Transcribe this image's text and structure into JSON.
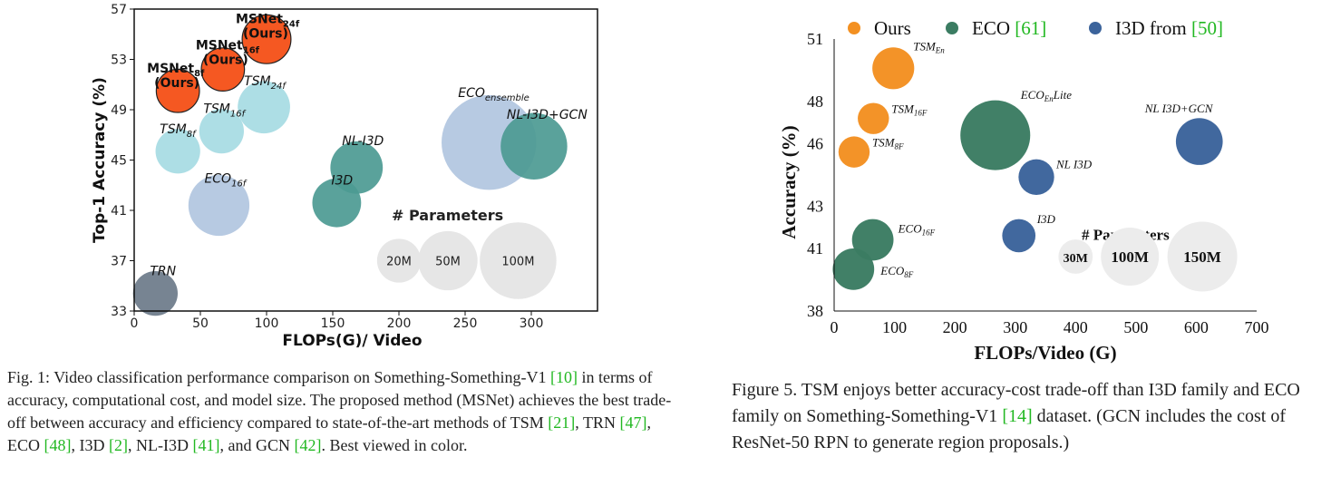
{
  "chart_data": [
    {
      "type": "scatter",
      "style": "bubble",
      "xlabel": "FLOPs(G)/ Video",
      "ylabel": "Top-1 Accuracy (%)",
      "xlim": [
        0,
        350
      ],
      "ylim": [
        33,
        57
      ],
      "xticks": [
        "0",
        "50",
        "100",
        "150",
        "200",
        "250",
        "300"
      ],
      "yticks": [
        "33",
        "37",
        "41",
        "45",
        "49",
        "53",
        "57"
      ],
      "points": [
        {
          "label": "MSNet",
          "sub": "24f",
          "label2": "(Ours)",
          "x": 100,
          "y": 54.6,
          "params": 24,
          "color": "#f44a0f",
          "label_dx": -34,
          "label_dy": -18
        },
        {
          "label": "MSNet",
          "sub": "16f",
          "label2": "(Ours)",
          "x": 67,
          "y": 52.2,
          "params": 16,
          "color": "#f44a0f",
          "label_dx": -30,
          "label_dy": -22
        },
        {
          "label": "MSNet",
          "sub": "8f",
          "label2": "(Ours)",
          "x": 33,
          "y": 50.5,
          "params": 16,
          "color": "#f44a0f",
          "label_dx": -34,
          "label_dy": -20
        },
        {
          "label": "TSM",
          "sub": "24f",
          "x": 98,
          "y": 49.2,
          "params": 30,
          "color": "#a6dbe3",
          "label_dx": -22,
          "label_dy": -24
        },
        {
          "label": "TSM",
          "sub": "16f",
          "x": 66,
          "y": 47.3,
          "params": 18,
          "color": "#a6dbe3",
          "label_dx": -20,
          "label_dy": -20
        },
        {
          "label": "TSM",
          "sub": "8f",
          "x": 33,
          "y": 45.7,
          "params": 18,
          "color": "#a6dbe3",
          "label_dx": -20,
          "label_dy": -20
        },
        {
          "label": "ECO",
          "sub": "ensemble",
          "x": 268,
          "y": 46.4,
          "params": 150,
          "color": "#b1c5e0",
          "label_dx": -34,
          "label_dy": -50
        },
        {
          "label": "NL-I3D+GCN",
          "sub": "",
          "x": 302,
          "y": 46.1,
          "params": 60,
          "color": "#4c9a93",
          "label_dx": -30,
          "label_dy": -30
        },
        {
          "label": "NL-I3D",
          "sub": "",
          "x": 168,
          "y": 44.4,
          "params": 30,
          "color": "#4c9a93",
          "label_dx": -16,
          "label_dy": -25
        },
        {
          "label": "I3D",
          "sub": "",
          "x": 153,
          "y": 41.6,
          "params": 24,
          "color": "#4c9a93",
          "label_dx": -6,
          "label_dy": -20
        },
        {
          "label": "ECO",
          "sub": "16f",
          "x": 64,
          "y": 41.4,
          "params": 47,
          "color": "#b1c5e0",
          "label_dx": -16,
          "label_dy": -25
        },
        {
          "label": "TRN",
          "sub": "",
          "x": 16,
          "y": 34.4,
          "params": 18,
          "color": "#6b7a89",
          "label_dx": -6,
          "label_dy": -20
        }
      ],
      "legend": {
        "title": "# Parameters",
        "entries": [
          {
            "label": "20M",
            "params": 20,
            "x": 200,
            "y": 37
          },
          {
            "label": "50M",
            "params": 50,
            "x": 237,
            "y": 37
          },
          {
            "label": "100M",
            "params": 100,
            "x": 290,
            "y": 37
          }
        ]
      }
    },
    {
      "type": "scatter",
      "style": "bubble",
      "xlabel": "FLOPs/Video (G)",
      "ylabel": "Accuracy (%)",
      "xlim": [
        0,
        700
      ],
      "ylim": [
        38,
        51
      ],
      "xticks": [
        "0",
        "100",
        "200",
        "300",
        "400",
        "500",
        "600",
        "700"
      ],
      "yticks": [
        "38",
        "41",
        "43",
        "46",
        "48",
        "51"
      ],
      "series": [
        {
          "name": "Ours",
          "color": "#f39021"
        },
        {
          "name": "ECO",
          "ref": "[61]",
          "color": "#3b7c62"
        },
        {
          "name": "I3D from",
          "ref": "[50]",
          "color": "#3b639b"
        }
      ],
      "points": [
        {
          "label": "TSM",
          "sub": "En",
          "x": 98,
          "y": 49.6,
          "params": 48,
          "color": "#f39021",
          "label_dx": 22,
          "label_dy": -20
        },
        {
          "label": "TSM",
          "sub": "16F",
          "x": 65,
          "y": 47.2,
          "params": 24,
          "color": "#f39021",
          "label_dx": 20,
          "label_dy": -6
        },
        {
          "label": "TSM",
          "sub": "8F",
          "x": 33,
          "y": 45.6,
          "params": 24,
          "color": "#f39021",
          "label_dx": 20,
          "label_dy": -6
        },
        {
          "label": "ECO",
          "sub": "En",
          "label_suffix": "Lite",
          "x": 267,
          "y": 46.4,
          "params": 150,
          "color": "#3b7c62",
          "label_dx": 28,
          "label_dy": -40
        },
        {
          "label": "NL I3D",
          "sub": "",
          "x": 335,
          "y": 44.4,
          "params": 33,
          "color": "#3b639b",
          "label_dx": 22,
          "label_dy": -10
        },
        {
          "label": "NL I3D+GCN",
          "sub": "",
          "x": 605,
          "y": 46.1,
          "params": 62,
          "color": "#3b639b",
          "label_dx": -60,
          "label_dy": -32
        },
        {
          "label": "I3D",
          "sub": "",
          "x": 306,
          "y": 41.6,
          "params": 28,
          "color": "#3b639b",
          "label_dx": 20,
          "label_dy": -14
        },
        {
          "label": "ECO",
          "sub": "16F",
          "x": 64,
          "y": 41.4,
          "params": 47,
          "color": "#3b7c62",
          "label_dx": 28,
          "label_dy": -8
        },
        {
          "label": "ECO",
          "sub": "8F",
          "x": 32,
          "y": 40.0,
          "params": 47,
          "color": "#3b7c62",
          "label_dx": 30,
          "label_dy": 6
        }
      ],
      "legend": {
        "title": "# Parameters",
        "entries": [
          {
            "label": "30M",
            "params": 30,
            "x": 400,
            "y": 40.6
          },
          {
            "label": "100M",
            "params": 100,
            "x": 490,
            "y": 40.6
          },
          {
            "label": "150M",
            "params": 150,
            "x": 610,
            "y": 40.6
          }
        ]
      }
    }
  ],
  "captions": {
    "left": {
      "parts": [
        {
          "text": "Fig. 1: Video classification performance comparison on Something-Something-V1 "
        },
        {
          "text": "[10]",
          "ref": true
        },
        {
          "text": " in terms of accuracy, computational cost, and model size. The proposed method (MSNet) achieves the best trade-off between accuracy and efficiency compared to state-of-the-art methods of TSM "
        },
        {
          "text": "[21]",
          "ref": true
        },
        {
          "text": ", TRN "
        },
        {
          "text": "[47]",
          "ref": true
        },
        {
          "text": ", ECO "
        },
        {
          "text": "[48]",
          "ref": true
        },
        {
          "text": ", I3D "
        },
        {
          "text": "[2]",
          "ref": true
        },
        {
          "text": ", NL-I3D "
        },
        {
          "text": "[41]",
          "ref": true
        },
        {
          "text": ", and GCN "
        },
        {
          "text": "[42]",
          "ref": true
        },
        {
          "text": ". Best viewed in color."
        }
      ]
    },
    "right": {
      "parts": [
        {
          "text": "Figure 5. TSM enjoys better accuracy-cost trade-off than I3D family and ECO family on Something-Something-V1 "
        },
        {
          "text": "[14]",
          "ref": true
        },
        {
          "text": " dataset. (GCN includes the cost of ResNet-50 RPN to generate region proposals.)"
        }
      ]
    }
  }
}
